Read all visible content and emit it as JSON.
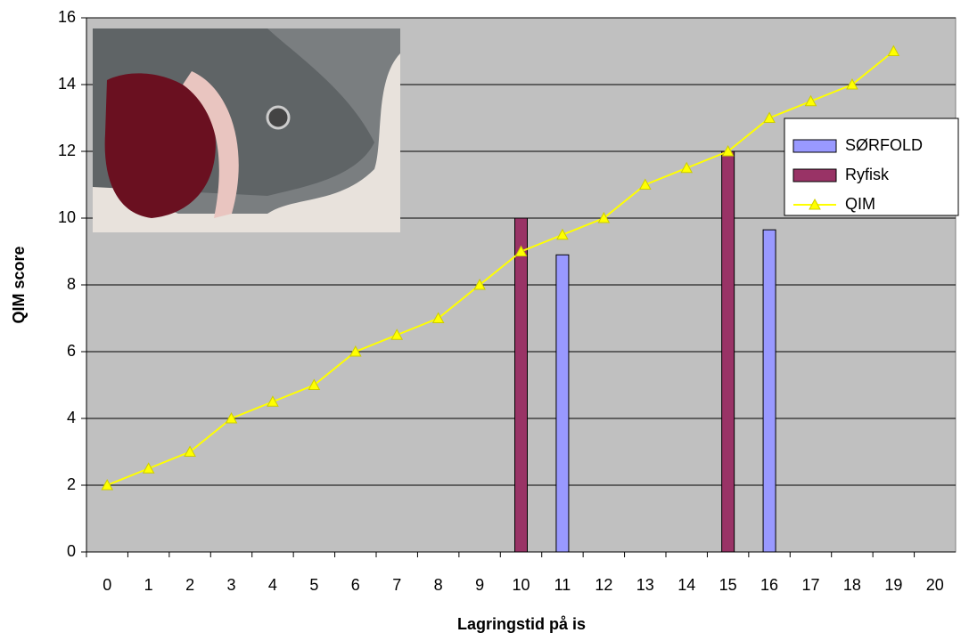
{
  "chart_data": {
    "type": "bar",
    "x_label": "Lagringstid på is",
    "y_label": "QIM score",
    "categories": [
      "0",
      "1",
      "2",
      "3",
      "4",
      "5",
      "6",
      "7",
      "8",
      "9",
      "10",
      "11",
      "12",
      "13",
      "14",
      "15",
      "16",
      "17",
      "18",
      "19",
      "20"
    ],
    "series": [
      {
        "name": "SØRFOLD",
        "type": "bar",
        "color": "#9999ff",
        "values": [
          null,
          null,
          null,
          null,
          null,
          null,
          null,
          null,
          null,
          null,
          null,
          8.9,
          null,
          null,
          null,
          null,
          9.65,
          null,
          null,
          null,
          null
        ]
      },
      {
        "name": "Ryfisk",
        "type": "bar",
        "color": "#993366",
        "values": [
          null,
          null,
          null,
          null,
          null,
          null,
          null,
          null,
          null,
          null,
          10,
          null,
          null,
          null,
          null,
          12,
          null,
          null,
          null,
          null,
          null
        ]
      },
      {
        "name": "QIM",
        "type": "line",
        "color": "#ffff00",
        "values": [
          2,
          2.5,
          3,
          4,
          4.5,
          5,
          6,
          6.5,
          7,
          8,
          9,
          9.5,
          10,
          11,
          11.5,
          12,
          13,
          13.5,
          14,
          15,
          null
        ]
      }
    ],
    "ylim": [
      0,
      16
    ],
    "yticks": [
      0,
      2,
      4,
      6,
      8,
      10,
      12,
      14,
      16
    ],
    "grid": true,
    "legend": "right"
  }
}
